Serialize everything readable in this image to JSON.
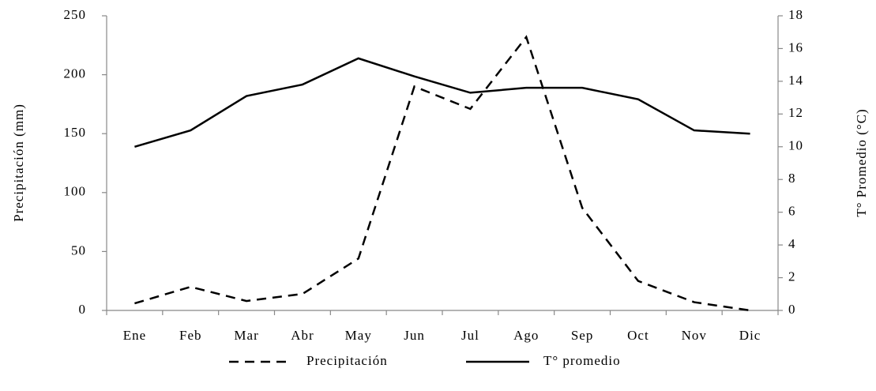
{
  "chart_data": {
    "type": "line",
    "categories": [
      "Ene",
      "Feb",
      "Mar",
      "Abr",
      "May",
      "Jun",
      "Jul",
      "Ago",
      "Sep",
      "Oct",
      "Nov",
      "Dic"
    ],
    "series": [
      {
        "name": "Precipitación",
        "color": "#000000",
        "dash": "dashed",
        "values": [
          6,
          20,
          8,
          14,
          44,
          190,
          171,
          232,
          87,
          25,
          7,
          0
        ]
      },
      {
        "name": "T° promedio",
        "color": "#000000",
        "dash": "solid",
        "axis": "y2",
        "values": [
          10.0,
          11.0,
          13.1,
          13.8,
          15.4,
          14.3,
          13.3,
          13.6,
          13.6,
          12.9,
          11.0,
          10.8
        ]
      }
    ],
    "y_label": "Precipitación (mm)",
    "y2_label": "T° Promedio (°C)",
    "ylim": [
      0,
      250
    ],
    "yticks": [
      0,
      50,
      100,
      150,
      200,
      250
    ],
    "y2lim": [
      0,
      18
    ],
    "y2ticks": [
      0,
      2,
      4,
      6,
      8,
      10,
      12,
      14,
      16,
      18
    ],
    "grid": false,
    "legend": "bottom"
  }
}
